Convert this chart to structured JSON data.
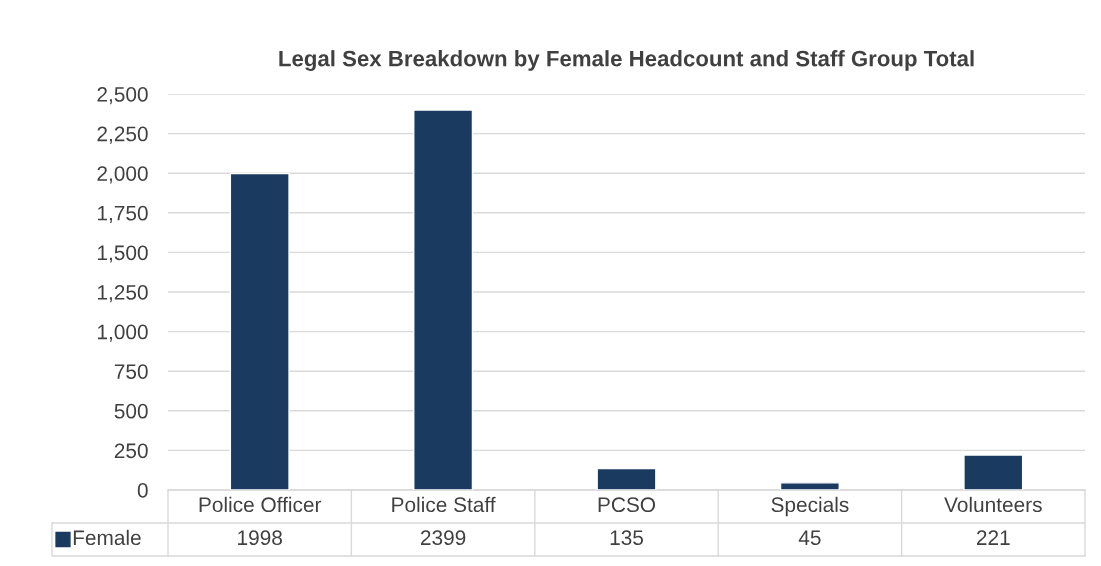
{
  "chart_data": {
    "type": "bar",
    "title": "Legal Sex Breakdown by Female Headcount and Staff Group Total",
    "categories": [
      "Police Officer",
      "Police Staff",
      "PCSO",
      "Specials",
      "Volunteers"
    ],
    "series": [
      {
        "name": "Female",
        "color": "#1b3a5f",
        "values": [
          1998,
          2399,
          135,
          45,
          221
        ]
      }
    ],
    "ylim": [
      0,
      2500
    ],
    "yticks": [
      0,
      250,
      500,
      750,
      {
        "value": 1000,
        "label": "1,000"
      },
      {
        "value": 1250,
        "label": "1,250"
      },
      {
        "value": 1500,
        "label": "1,500"
      },
      {
        "value": 1750,
        "label": "1,750"
      },
      {
        "value": 2000,
        "label": "2,000"
      },
      {
        "value": 2250,
        "label": "2,250"
      },
      {
        "value": 2500,
        "label": "2,500"
      }
    ],
    "grid": "y",
    "legend": "bottom",
    "data_labels": true
  }
}
